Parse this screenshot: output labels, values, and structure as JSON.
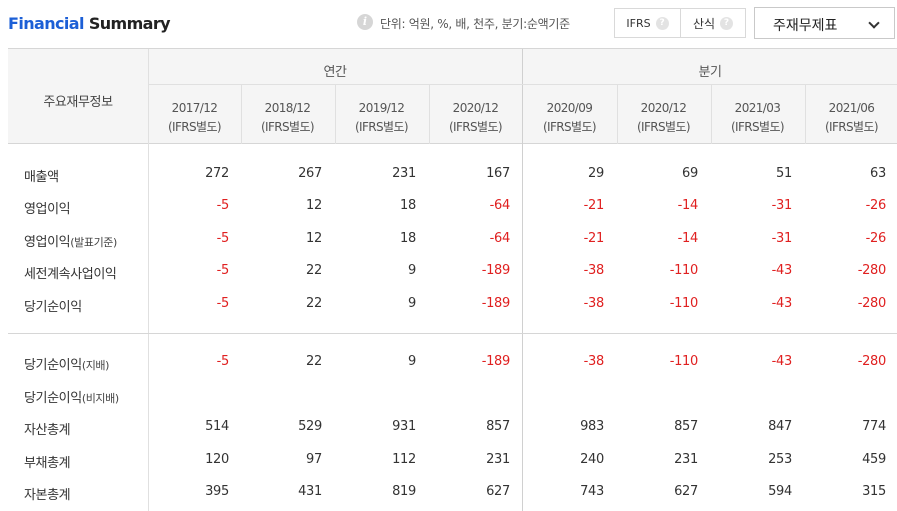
{
  "header": {
    "title_part1": "Financial",
    "title_part2": "Summary",
    "info_icon": "info-icon",
    "unit_text": "단위: 억원, %, 배, 천주, 분기:순액기준",
    "toggle": [
      {
        "label": "IFRS",
        "icon": "help-icon"
      },
      {
        "label": "산식",
        "icon": "help-icon"
      }
    ],
    "select_value": "주재무제표",
    "select_icon": "chevron-down-icon"
  },
  "table": {
    "row_header": "주요재무정보",
    "groups": [
      "연간",
      "분기"
    ],
    "periods": [
      {
        "date": "2017/12",
        "basis": "(IFRS별도)"
      },
      {
        "date": "2018/12",
        "basis": "(IFRS별도)"
      },
      {
        "date": "2019/12",
        "basis": "(IFRS별도)"
      },
      {
        "date": "2020/12",
        "basis": "(IFRS별도)"
      },
      {
        "date": "2020/09",
        "basis": "(IFRS별도)"
      },
      {
        "date": "2020/12",
        "basis": "(IFRS별도)"
      },
      {
        "date": "2021/03",
        "basis": "(IFRS별도)"
      },
      {
        "date": "2021/06",
        "basis": "(IFRS별도)"
      }
    ],
    "rows": [
      {
        "label": "매출액",
        "sub": "",
        "values": [
          "272",
          "267",
          "231",
          "167",
          "29",
          "69",
          "51",
          "63"
        ]
      },
      {
        "label": "영업이익",
        "sub": "",
        "values": [
          "-5",
          "12",
          "18",
          "-64",
          "-21",
          "-14",
          "-31",
          "-26"
        ]
      },
      {
        "label": "영업이익",
        "sub": "(발표기준)",
        "values": [
          "-5",
          "12",
          "18",
          "-64",
          "-21",
          "-14",
          "-31",
          "-26"
        ]
      },
      {
        "label": "세전계속사업이익",
        "sub": "",
        "values": [
          "-5",
          "22",
          "9",
          "-189",
          "-38",
          "-110",
          "-43",
          "-280"
        ]
      },
      {
        "label": "당기순이익",
        "sub": "",
        "values": [
          "-5",
          "22",
          "9",
          "-189",
          "-38",
          "-110",
          "-43",
          "-280"
        ]
      },
      {
        "label": "당기순이익",
        "sub": "(지배)",
        "values": [
          "-5",
          "22",
          "9",
          "-189",
          "-38",
          "-110",
          "-43",
          "-280"
        ]
      },
      {
        "label": "당기순이익",
        "sub": "(비지배)",
        "values": [
          "",
          "",
          "",
          "",
          "",
          "",
          "",
          ""
        ]
      },
      {
        "label": "자산총계",
        "sub": "",
        "values": [
          "514",
          "529",
          "931",
          "857",
          "983",
          "857",
          "847",
          "774"
        ]
      },
      {
        "label": "부채총계",
        "sub": "",
        "values": [
          "120",
          "97",
          "112",
          "231",
          "240",
          "231",
          "253",
          "459"
        ]
      },
      {
        "label": "자본총계",
        "sub": "",
        "values": [
          "395",
          "431",
          "819",
          "627",
          "743",
          "627",
          "594",
          "315"
        ]
      }
    ]
  },
  "colors": {
    "brand_blue": "#1c5fd6",
    "negative_red": "#e02020",
    "header_bg": "#f5f5f5"
  }
}
